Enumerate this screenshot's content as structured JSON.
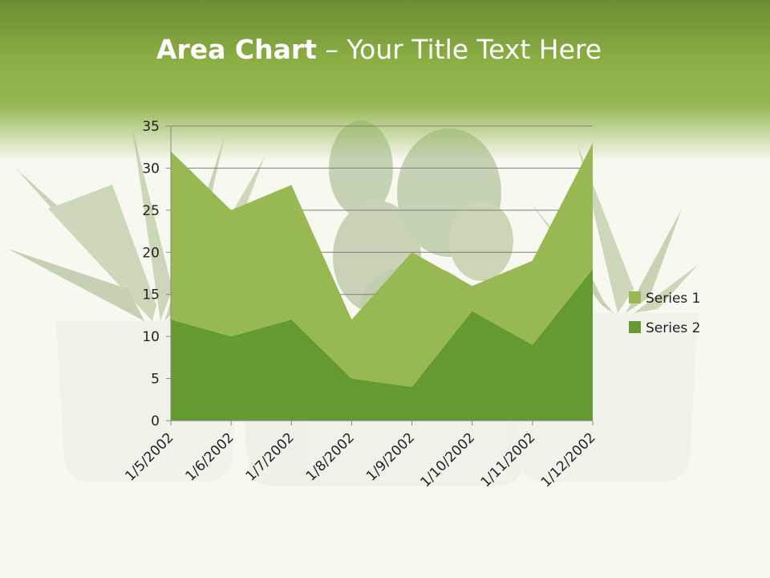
{
  "slide": {
    "title_bold": "Area Chart",
    "title_rest": " – Your Title Text Here"
  },
  "colors": {
    "series1": "#97b853",
    "series2": "#659a33",
    "header": "#8db045",
    "gridline": "#7f7f7f"
  },
  "background_image": "potted-succulents-photo",
  "chart_data": {
    "type": "area",
    "stacked": true,
    "categories": [
      "1/5/2002",
      "1/6/2002",
      "1/7/2002",
      "1/8/2002",
      "1/9/2002",
      "1/10/2002",
      "1/11/2002",
      "1/12/2002"
    ],
    "series": [
      {
        "name": "Series 1",
        "values": [
          20,
          15,
          16,
          7,
          16,
          3,
          10,
          15
        ]
      },
      {
        "name": "Series 2",
        "values": [
          12,
          10,
          12,
          5,
          4,
          13,
          9,
          18
        ]
      }
    ],
    "stack_totals": [
      32,
      25,
      28,
      12,
      20,
      16,
      19,
      33
    ],
    "ylim": [
      0,
      35
    ],
    "yticks": [
      "0",
      "5",
      "10",
      "15",
      "20",
      "25",
      "30",
      "35"
    ],
    "grid": true,
    "legend": "right",
    "title": "",
    "xlabel": "",
    "ylabel": ""
  }
}
